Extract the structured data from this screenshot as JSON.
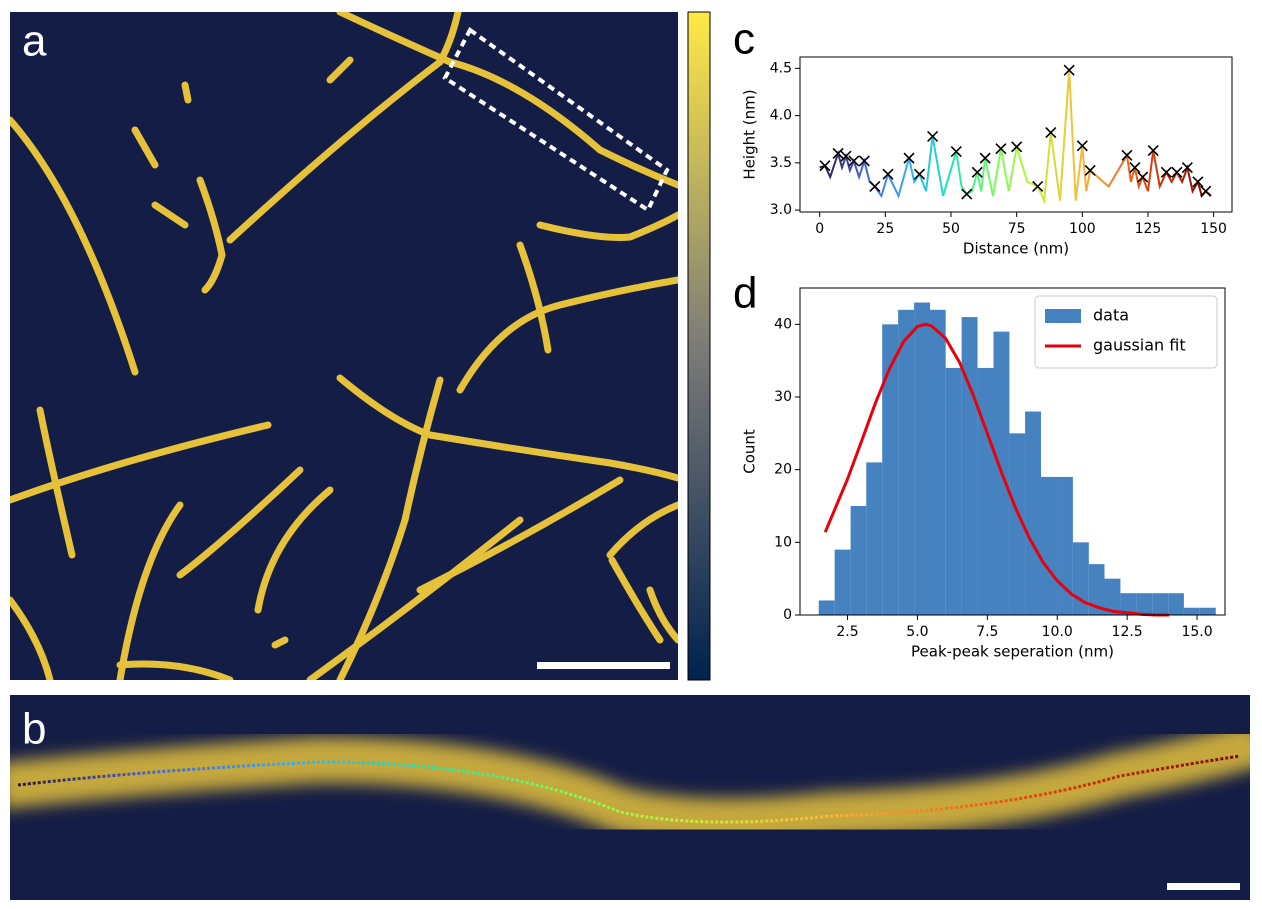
{
  "panel_labels": [
    "a",
    "b",
    "c",
    "d"
  ],
  "chart_data": [
    {
      "type": "line",
      "xlabel": "Distance (nm)",
      "ylabel": "Height (nm)",
      "x": [
        0,
        2,
        4,
        7,
        8.5,
        10,
        11.5,
        13,
        15,
        17,
        19,
        21,
        23.5,
        26,
        30,
        34,
        36,
        38,
        40.5,
        43,
        47,
        52,
        54,
        56,
        58,
        60,
        61.5,
        63,
        66,
        69,
        72,
        75,
        79,
        83,
        85.5,
        88,
        91.5,
        95,
        97.5,
        100,
        101.5,
        103,
        110,
        117,
        118.5,
        120,
        121.5,
        123,
        125,
        127,
        129.5,
        132,
        134,
        136,
        138,
        140,
        142,
        144,
        145.5,
        147,
        149
      ],
      "series": [
        {
          "values": [
            3.45,
            3.47,
            3.35,
            3.6,
            3.45,
            3.57,
            3.42,
            3.52,
            3.35,
            3.52,
            3.3,
            3.25,
            3.15,
            3.38,
            3.15,
            3.55,
            3.3,
            3.38,
            3.2,
            3.78,
            3.15,
            3.62,
            3.25,
            3.17,
            3.2,
            3.4,
            3.2,
            3.55,
            3.15,
            3.65,
            3.2,
            3.67,
            3.3,
            3.25,
            3.1,
            3.82,
            3.1,
            4.48,
            3.1,
            3.68,
            3.2,
            3.42,
            3.25,
            3.58,
            3.3,
            3.45,
            3.25,
            3.35,
            3.2,
            3.63,
            3.25,
            3.4,
            3.3,
            3.4,
            3.3,
            3.45,
            3.2,
            3.3,
            3.15,
            3.2,
            3.15
          ]
        }
      ],
      "markers": {
        "color": "#000000",
        "x": [
          2,
          7,
          10,
          13,
          17,
          21,
          26,
          34,
          38,
          43,
          52,
          56,
          60,
          63,
          69,
          75,
          83,
          88,
          95,
          100,
          103,
          117,
          120,
          123,
          127,
          132,
          136,
          140,
          144,
          147
        ],
        "values": [
          3.47,
          3.6,
          3.57,
          3.52,
          3.52,
          3.25,
          3.38,
          3.55,
          3.38,
          3.78,
          3.62,
          3.17,
          3.4,
          3.55,
          3.65,
          3.67,
          3.25,
          3.82,
          4.48,
          3.68,
          3.42,
          3.58,
          3.45,
          3.35,
          3.63,
          3.4,
          3.4,
          3.45,
          3.3,
          3.2
        ]
      },
      "xlim": [
        -7.5,
        157
      ],
      "ylim": [
        2.98,
        4.62
      ],
      "xticks": [
        0,
        25,
        50,
        75,
        100,
        125,
        150
      ],
      "yticks": [
        {
          "value": 3,
          "label": "3.0"
        },
        3.5,
        {
          "value": 4,
          "label": "4.0"
        },
        4.5
      ]
    },
    {
      "type": "histogram",
      "xlabel": "Peak-peak seperation (nm)",
      "ylabel": "Count",
      "bins": [
        1.47,
        2.04,
        2.61,
        3.17,
        3.74,
        4.31,
        4.88,
        5.45,
        6.01,
        6.58,
        7.15,
        7.72,
        8.29,
        8.85,
        9.42,
        9.99,
        10.56,
        11.13,
        11.69,
        12.26,
        12.83,
        13.4,
        13.97,
        14.53,
        15.1,
        15.67
      ],
      "series": [
        {
          "name": "data",
          "color": "#4682c0",
          "values": [
            2,
            9,
            15,
            21,
            40,
            42,
            43,
            42,
            34,
            41,
            34,
            39,
            25,
            28,
            19,
            19,
            10,
            7,
            5,
            3,
            3,
            3,
            3,
            1,
            1
          ]
        },
        {
          "name": "gaussian fit",
          "color": "#e8000b",
          "x": [
            1.7,
            2.5,
            3,
            3.5,
            4,
            4.5,
            5,
            5.3,
            5.5,
            6,
            6.5,
            7,
            7.5,
            8,
            8.5,
            9,
            9.5,
            10,
            10.5,
            11,
            11.5,
            12,
            12.5,
            13,
            13.5,
            14
          ],
          "values": [
            11.4,
            18.7,
            23.9,
            29.2,
            33.9,
            37.6,
            39.7,
            40,
            39.8,
            38.1,
            34.8,
            30.2,
            25,
            19.7,
            14.8,
            10.6,
            7.2,
            4.7,
            2.9,
            1.7,
            1,
            0.5,
            0.3,
            0.1,
            0,
            0
          ]
        }
      ],
      "legend": "upper right",
      "xlim": [
        0.8,
        16
      ],
      "ylim": [
        0,
        45
      ],
      "xticks": [
        2.5,
        {
          "value": 5,
          "label": "5.0"
        },
        7.5,
        {
          "value": 10,
          "label": "10.0"
        },
        12.5,
        {
          "value": 15,
          "label": "15.0"
        }
      ],
      "yticks": [
        0,
        10,
        20,
        30,
        40
      ]
    }
  ]
}
